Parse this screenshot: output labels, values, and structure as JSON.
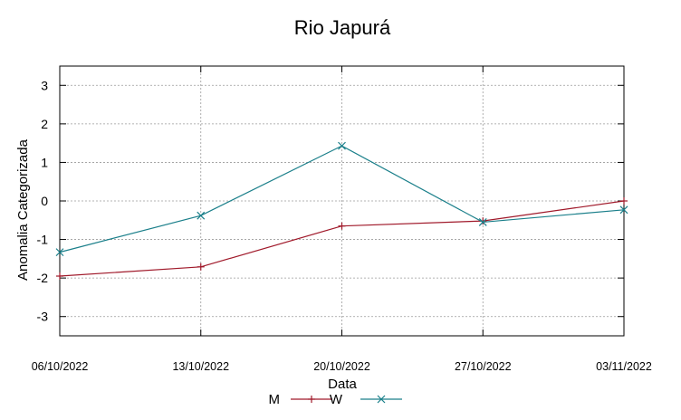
{
  "chart_data": {
    "type": "line",
    "title": "Rio Japurá",
    "xlabel": "Data",
    "ylabel": "Anomalia Categorizada",
    "categories": [
      "06/10/2022",
      "13/10/2022",
      "20/10/2022",
      "27/10/2022",
      "03/11/2022"
    ],
    "ylim": [
      -3.5,
      3.5
    ],
    "yticks": [
      -3,
      -2,
      -1,
      0,
      1,
      2,
      3
    ],
    "grid": true,
    "legend_position": "bottom",
    "series": [
      {
        "name": "M",
        "color": "#a0192a",
        "marker": "plus",
        "values": [
          -1.95,
          -1.71,
          -0.65,
          -0.52,
          0.0
        ]
      },
      {
        "name": "W",
        "color": "#1a7f8a",
        "marker": "cross",
        "values": [
          -1.33,
          -0.38,
          1.43,
          -0.55,
          -0.23
        ]
      }
    ]
  }
}
